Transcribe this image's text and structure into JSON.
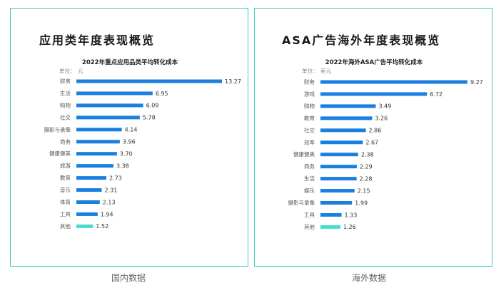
{
  "panels": [
    {
      "heading": "应用类年度表现概览",
      "caption": "国内数据"
    },
    {
      "heading": "ASA广告海外年度表现概览",
      "caption": "海外数据"
    }
  ],
  "colors": {
    "bar": "#1a7fe0",
    "highlight": "#46dccd",
    "border": "#3cc9bd"
  },
  "chart_data": [
    {
      "type": "bar",
      "orientation": "horizontal",
      "title": "2022年重点应用品类平均转化成本",
      "unit_label": "单位：",
      "unit_value": "元",
      "categories": [
        "财务",
        "生活",
        "购物",
        "社交",
        "摄影与录像",
        "商务",
        "健康健美",
        "旅游",
        "教育",
        "音乐",
        "体育",
        "工具",
        "其他"
      ],
      "values": [
        13.27,
        6.95,
        6.09,
        5.78,
        4.14,
        3.96,
        3.7,
        3.38,
        2.73,
        2.31,
        2.13,
        1.94,
        1.52
      ],
      "labels": [
        "13.27",
        "6.95",
        "6.09",
        "5.78",
        "4.14",
        "3.96",
        "3.70",
        "3.38",
        "2.73",
        "2.31",
        "2.13",
        "1.94",
        "1.52"
      ],
      "highlight_index": 12,
      "xlim": [
        0,
        13.27
      ]
    },
    {
      "type": "bar",
      "orientation": "horizontal",
      "title": "2022年海外ASA广告平均转化成本",
      "unit_label": "单位：",
      "unit_value": "美元",
      "categories": [
        "财务",
        "游戏",
        "购物",
        "教育",
        "社交",
        "效率",
        "健康健美",
        "商务",
        "生活",
        "娱乐",
        "摄影与录像",
        "工具",
        "其他"
      ],
      "values": [
        9.27,
        6.72,
        3.49,
        3.26,
        2.86,
        2.67,
        2.38,
        2.29,
        2.28,
        2.15,
        1.99,
        1.33,
        1.26
      ],
      "labels": [
        "9.27",
        "6.72",
        "3.49",
        "3.26",
        "2.86",
        "2.67",
        "2.38",
        "2.29",
        "2.28",
        "2.15",
        "1.99",
        "1.33",
        "1.26"
      ],
      "highlight_index": 12,
      "xlim": [
        0,
        9.27
      ]
    }
  ]
}
